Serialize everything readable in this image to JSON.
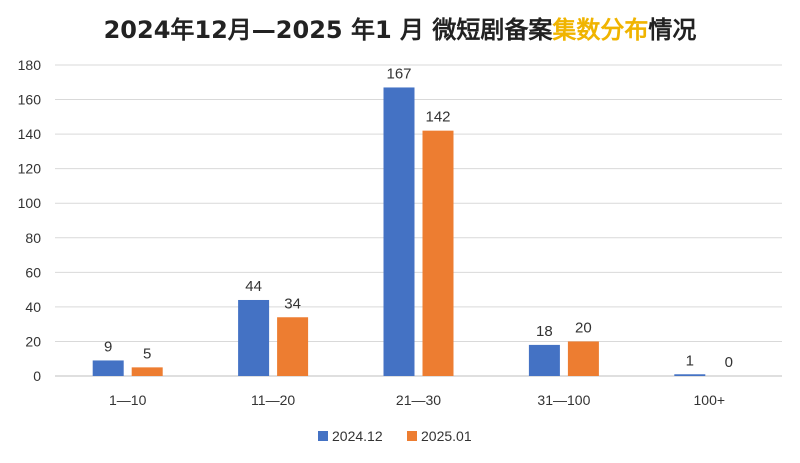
{
  "title": {
    "part1": "2024年12月—2025 年1 月 微短剧备案",
    "highlight": "集数分布",
    "part2": "情况"
  },
  "colors": {
    "series1": "#4472c4",
    "series2": "#ed7d31",
    "highlight": "#f0b400",
    "grid": "#d9d9d9",
    "text": "#333333"
  },
  "chart_data": {
    "type": "bar",
    "categories": [
      "1—10",
      "11—20",
      "21—30",
      "31—100",
      "100+"
    ],
    "series": [
      {
        "name": "2024.12",
        "values": [
          9,
          44,
          167,
          18,
          1
        ]
      },
      {
        "name": "2025.01",
        "values": [
          5,
          34,
          142,
          20,
          0
        ]
      }
    ],
    "ylim": [
      0,
      180
    ],
    "yticks": [
      0,
      20,
      40,
      60,
      80,
      100,
      120,
      140,
      160,
      180
    ],
    "grid": true,
    "legend": "bottom",
    "data_labels": true
  }
}
